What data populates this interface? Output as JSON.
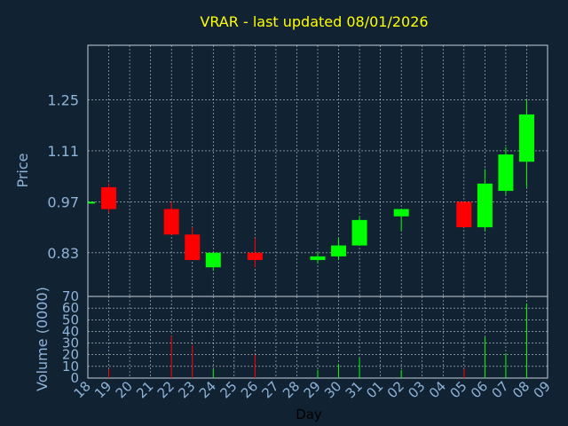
{
  "chart_data": {
    "type": "candlestick",
    "title": "VRAR - last updated 08/01/2026",
    "xlabel": "Day",
    "ylabel_price": "Price",
    "ylabel_volume": "Volume (0000)",
    "price_ylim": [
      0.71,
      1.4
    ],
    "price_ticks": [
      "0.83",
      "0.97",
      "1.11",
      "1.25"
    ],
    "volume_ylim": [
      0,
      70
    ],
    "volume_ticks": [
      "0",
      "10",
      "20",
      "30",
      "40",
      "50",
      "60",
      "70"
    ],
    "x_ticks": [
      "18",
      "19",
      "20",
      "21",
      "22",
      "23",
      "24",
      "25",
      "26",
      "27",
      "28",
      "29",
      "30",
      "31",
      "01",
      "02",
      "03",
      "04",
      "05",
      "06",
      "07",
      "08",
      "09"
    ],
    "grid": true,
    "colors": {
      "up": "#00ff00",
      "down": "#ff0000",
      "title": "#ffff00",
      "axis_text": "#8fb4d8",
      "grid": "#ffffff"
    },
    "candles": [
      {
        "day": "18",
        "open": 0.97,
        "high": 0.97,
        "low": 0.97,
        "close": 0.97,
        "volume": 0
      },
      {
        "day": "19",
        "open": 1.01,
        "high": 1.02,
        "low": 0.94,
        "close": 0.95,
        "volume": 8
      },
      {
        "day": "22",
        "open": 0.95,
        "high": 0.97,
        "low": 0.88,
        "close": 0.88,
        "volume": 36
      },
      {
        "day": "23",
        "open": 0.88,
        "high": 0.9,
        "low": 0.81,
        "close": 0.81,
        "volume": 28
      },
      {
        "day": "24",
        "open": 0.79,
        "high": 0.83,
        "low": 0.78,
        "close": 0.83,
        "volume": 8
      },
      {
        "day": "26",
        "open": 0.83,
        "high": 0.87,
        "low": 0.79,
        "close": 0.81,
        "volume": 20
      },
      {
        "day": "29",
        "open": 0.81,
        "high": 0.83,
        "low": 0.8,
        "close": 0.82,
        "volume": 7
      },
      {
        "day": "30",
        "open": 0.82,
        "high": 0.87,
        "low": 0.81,
        "close": 0.85,
        "volume": 12
      },
      {
        "day": "31",
        "open": 0.85,
        "high": 0.93,
        "low": 0.85,
        "close": 0.92,
        "volume": 17
      },
      {
        "day": "02",
        "open": 0.93,
        "high": 0.95,
        "low": 0.89,
        "close": 0.95,
        "volume": 7
      },
      {
        "day": "05",
        "open": 0.97,
        "high": 0.97,
        "low": 0.9,
        "close": 0.9,
        "volume": 8
      },
      {
        "day": "06",
        "open": 0.9,
        "high": 1.06,
        "low": 0.89,
        "close": 1.02,
        "volume": 35
      },
      {
        "day": "07",
        "open": 1.0,
        "high": 1.12,
        "low": 0.99,
        "close": 1.1,
        "volume": 21
      },
      {
        "day": "08",
        "open": 1.08,
        "high": 1.25,
        "low": 1.01,
        "close": 1.21,
        "volume": 64
      }
    ]
  }
}
